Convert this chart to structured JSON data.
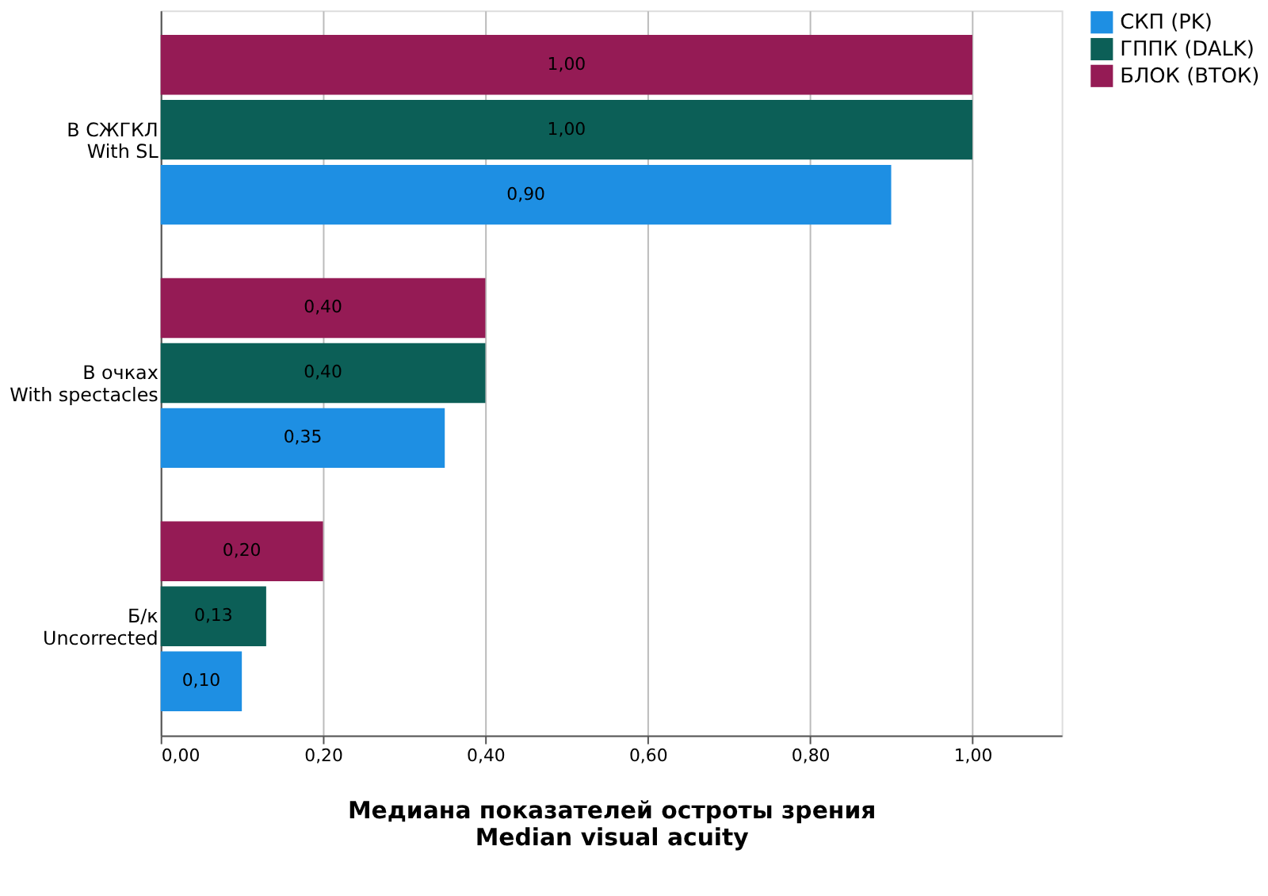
{
  "chart_data": {
    "type": "bar",
    "orientation": "horizontal",
    "categories": [
      "В СЖГКЛ\nWith SL",
      "В очках\nWith spectacles",
      "Б/к\nUncorrected"
    ],
    "series": [
      {
        "name": "СКП (PK)",
        "color": "#1e8fe3",
        "values": [
          0.9,
          0.35,
          0.1
        ],
        "value_labels": [
          "0,90",
          "0,35",
          "0,10"
        ]
      },
      {
        "name": "ГППК (DALK)",
        "color": "#0c5f57",
        "values": [
          1.0,
          0.4,
          0.13
        ],
        "value_labels": [
          "1,00",
          "0,40",
          "0,13"
        ]
      },
      {
        "name": "БЛОК (ВТОК)",
        "color": "#951b55",
        "values": [
          1.0,
          0.4,
          0.2
        ],
        "value_labels": [
          "1,00",
          "0,40",
          "0,20"
        ]
      }
    ],
    "xlabel": "Медиана показателей остроты зрения\nMedian visual acuity",
    "xlim": [
      0,
      1.11
    ],
    "xticks": [
      {
        "value": 0,
        "label": "0,00"
      },
      {
        "value": 0.2,
        "label": "0,20"
      },
      {
        "value": 0.4,
        "label": "0,40"
      },
      {
        "value": 0.6,
        "label": "0,60"
      },
      {
        "value": 0.8,
        "label": "0,80"
      },
      {
        "value": 1.0,
        "label": "1,00"
      }
    ],
    "grid": "x",
    "legend": "top right"
  }
}
